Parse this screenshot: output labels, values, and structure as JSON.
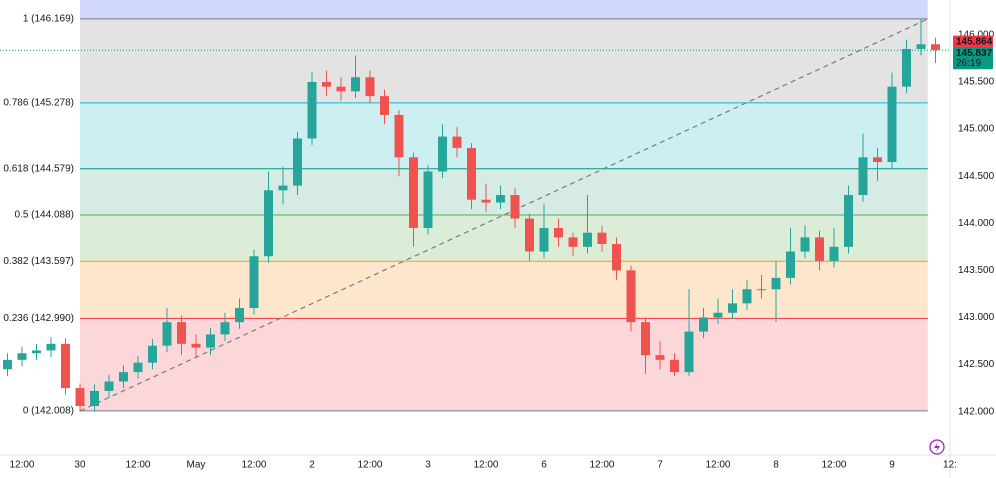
{
  "chart_data": {
    "type": "candlestick",
    "x": [
      -15,
      -12,
      -9,
      -6,
      -3,
      0,
      3,
      6,
      9,
      12,
      15,
      18,
      21,
      24,
      27,
      30,
      33,
      36,
      39,
      42,
      45,
      48,
      51,
      54,
      57,
      60,
      63,
      66,
      69,
      72,
      75,
      78,
      81,
      84,
      87,
      90,
      93,
      96,
      99,
      102,
      105,
      108,
      111,
      114,
      117,
      120,
      123,
      126,
      129,
      132,
      135,
      138,
      141,
      144,
      147,
      150,
      153,
      156,
      159,
      162,
      165,
      168,
      171,
      174,
      177
    ],
    "open": [
      142.45,
      142.55,
      142.62,
      142.65,
      142.72,
      142.25,
      142.06,
      142.22,
      142.32,
      142.42,
      142.52,
      142.7,
      142.95,
      142.72,
      142.68,
      142.82,
      142.95,
      143.1,
      143.65,
      144.35,
      144.4,
      144.9,
      145.5,
      145.45,
      145.4,
      145.55,
      145.35,
      145.15,
      144.7,
      143.95,
      144.55,
      144.92,
      144.8,
      144.25,
      144.22,
      144.3,
      144.05,
      143.7,
      143.95,
      143.85,
      143.75,
      143.9,
      143.78,
      143.5,
      142.95,
      142.6,
      142.55,
      142.42,
      142.85,
      143.0,
      143.05,
      143.15,
      143.3,
      143.3,
      143.42,
      143.7,
      143.85,
      143.6,
      143.75,
      144.3,
      144.7,
      144.65,
      145.45,
      145.85,
      145.9
    ],
    "high": [
      142.62,
      142.69,
      142.72,
      142.79,
      142.78,
      142.3,
      142.29,
      142.39,
      142.49,
      142.59,
      142.77,
      143.1,
      143.02,
      142.82,
      142.89,
      143.05,
      143.2,
      143.72,
      144.55,
      144.6,
      144.97,
      145.6,
      145.62,
      145.55,
      145.78,
      145.62,
      145.42,
      145.2,
      144.75,
      144.62,
      145.05,
      145.02,
      144.85,
      144.42,
      144.4,
      144.37,
      144.1,
      144.2,
      144.05,
      143.9,
      144.3,
      143.97,
      143.85,
      143.55,
      143.0,
      142.75,
      142.62,
      143.3,
      143.1,
      143.2,
      143.3,
      143.4,
      143.45,
      143.6,
      143.95,
      143.98,
      143.92,
      143.95,
      144.4,
      144.95,
      144.8,
      145.6,
      145.95,
      146.169,
      145.97
    ],
    "low": [
      142.38,
      142.48,
      142.55,
      142.58,
      142.18,
      142.0,
      142.0,
      142.15,
      142.25,
      142.35,
      142.45,
      142.63,
      142.6,
      142.58,
      142.6,
      142.75,
      142.88,
      143.03,
      143.58,
      144.2,
      144.3,
      144.83,
      145.35,
      145.3,
      145.33,
      145.28,
      145.05,
      144.5,
      143.75,
      143.88,
      144.48,
      144.7,
      144.15,
      144.12,
      144.15,
      143.95,
      143.6,
      143.63,
      143.75,
      143.65,
      143.68,
      143.7,
      143.4,
      142.85,
      142.4,
      142.45,
      142.38,
      142.38,
      142.78,
      142.93,
      142.98,
      143.08,
      143.2,
      142.95,
      143.35,
      143.63,
      143.5,
      143.53,
      143.68,
      144.23,
      144.45,
      144.58,
      145.38,
      145.78,
      145.7
    ],
    "close": [
      142.55,
      142.62,
      142.65,
      142.72,
      142.25,
      142.06,
      142.22,
      142.32,
      142.42,
      142.52,
      142.7,
      142.95,
      142.72,
      142.68,
      142.82,
      142.95,
      143.1,
      143.65,
      144.35,
      144.4,
      144.9,
      145.5,
      145.45,
      145.4,
      145.55,
      145.35,
      145.15,
      144.7,
      143.95,
      144.55,
      144.92,
      144.8,
      144.25,
      144.22,
      144.3,
      144.05,
      143.7,
      143.95,
      143.85,
      143.75,
      143.9,
      143.78,
      143.5,
      142.95,
      142.6,
      142.55,
      142.42,
      142.85,
      143.0,
      143.05,
      143.15,
      143.3,
      143.3,
      143.42,
      143.7,
      143.85,
      143.6,
      143.75,
      144.3,
      144.7,
      144.65,
      145.45,
      145.85,
      145.9,
      145.84
    ],
    "up_color": "#26a69a",
    "down_color": "#ef5350",
    "xlim": [
      -16.55,
      180
    ],
    "ylim": [
      141.54,
      146.37
    ],
    "xticks": [
      {
        "value": -12,
        "label": "12:00"
      },
      {
        "value": 0,
        "label": "30"
      },
      {
        "value": 12,
        "label": "12:00"
      },
      {
        "value": 24,
        "label": "May"
      },
      {
        "value": 36,
        "label": "12:00"
      },
      {
        "value": 48,
        "label": "2"
      },
      {
        "value": 60,
        "label": "12:00"
      },
      {
        "value": 72,
        "label": "3"
      },
      {
        "value": 84,
        "label": "12:00"
      },
      {
        "value": 96,
        "label": "6"
      },
      {
        "value": 108,
        "label": "12:00"
      },
      {
        "value": 120,
        "label": "7"
      },
      {
        "value": 132,
        "label": "12:00"
      },
      {
        "value": 144,
        "label": "8"
      },
      {
        "value": 156,
        "label": "12:00"
      },
      {
        "value": 168,
        "label": "9"
      },
      {
        "value": 180,
        "label": "12:"
      }
    ],
    "yticks": [
      {
        "value": 142,
        "label": "142.000"
      },
      {
        "value": 142.5,
        "label": "142.500"
      },
      {
        "value": 143,
        "label": "143.000"
      },
      {
        "value": 143.5,
        "label": "143.500"
      },
      {
        "value": 144,
        "label": "144.000"
      },
      {
        "value": 144.5,
        "label": "144.500"
      },
      {
        "value": 145,
        "label": "145.000"
      },
      {
        "value": 145.5,
        "label": "145.500"
      },
      {
        "value": 146,
        "label": "146.000"
      }
    ],
    "fib_levels": [
      {
        "value": 146.169,
        "label": "1 (146.169)",
        "color": "#787b86",
        "fill": "#d1d8fb"
      },
      {
        "value": 145.278,
        "label": "0.786 (145.278)",
        "color": "#00bcd4",
        "fill": "#e3e3e3"
      },
      {
        "value": 144.579,
        "label": "0.618 (144.579)",
        "color": "#089981",
        "fill": "#cdeff2"
      },
      {
        "value": 144.088,
        "label": "0.5 (144.088)",
        "color": "#4caf50",
        "fill": "#d5ebe3"
      },
      {
        "value": 143.597,
        "label": "0.382 (143.597)",
        "color": "#ff9800",
        "fill": "#dcedd7"
      },
      {
        "value": 142.99,
        "label": "0.236 (142.990)",
        "color": "#f23645",
        "fill": "#fde6cb"
      },
      {
        "value": 142.008,
        "label": "0 (142.008)",
        "color": "#787b86",
        "fill": "#fcd7d9"
      }
    ],
    "trendline": {
      "x": [
        0,
        175.4
      ],
      "y": [
        142.008,
        146.169
      ]
    },
    "price_labels": [
      {
        "value": 145.864,
        "label": "145.864",
        "color": "#f23645"
      },
      {
        "value": 145.837,
        "label": "145.837",
        "color": "#089981"
      }
    ],
    "countdown": "26:19"
  }
}
